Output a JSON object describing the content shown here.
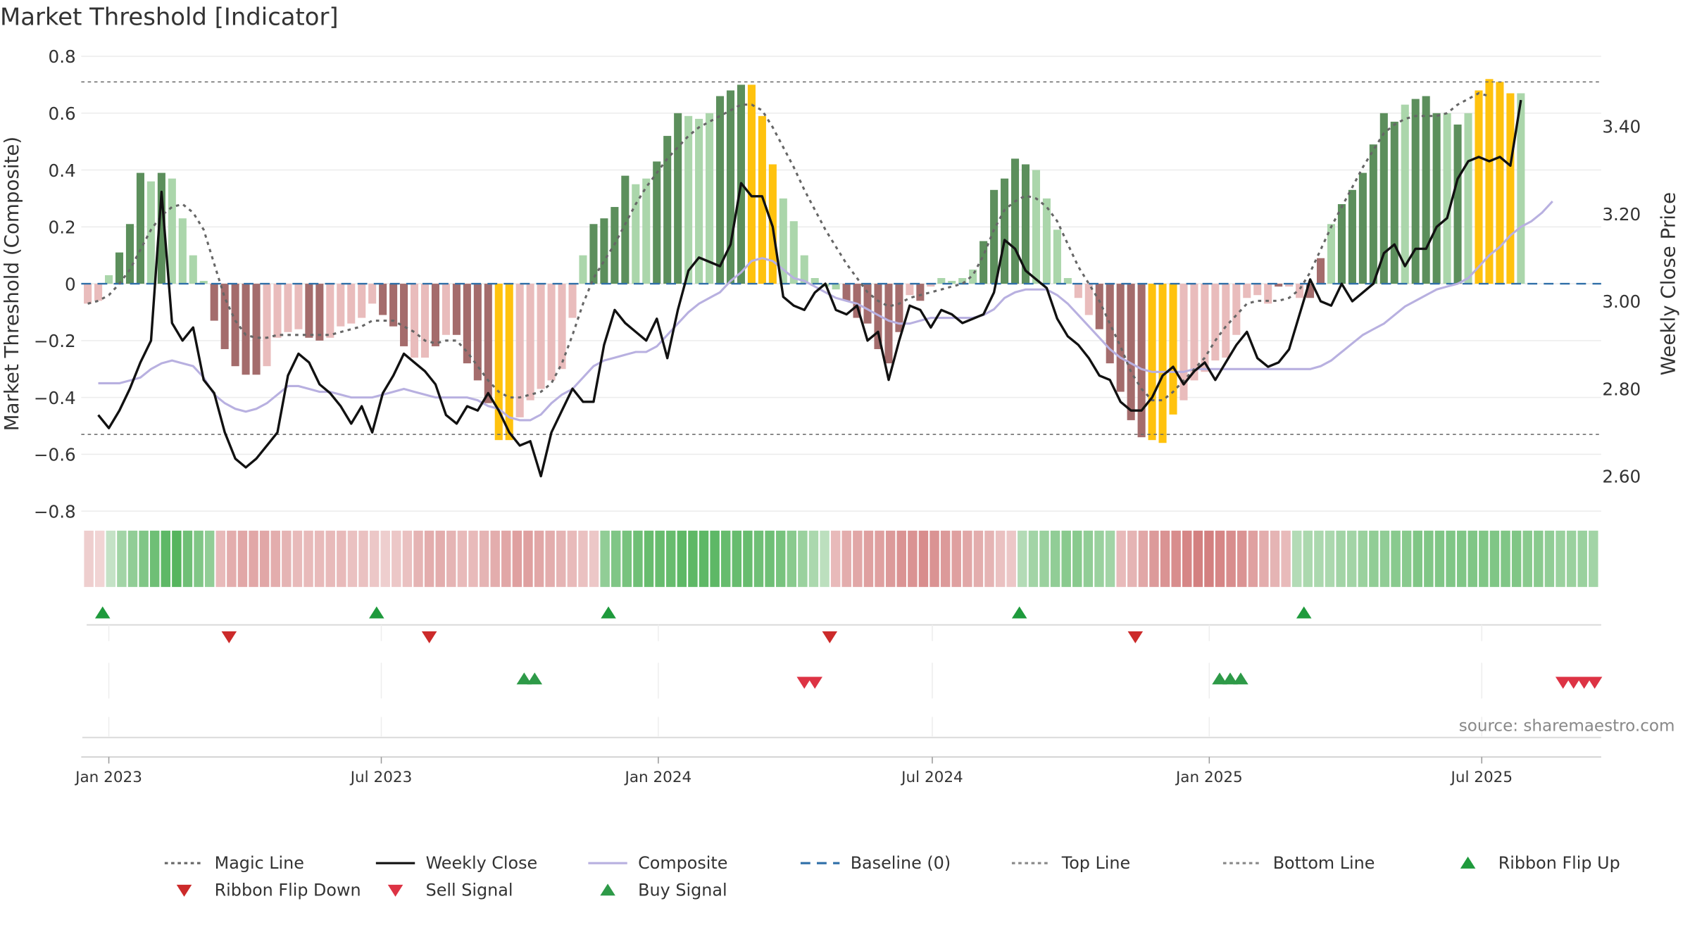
{
  "chart_data": {
    "type": "bar",
    "title": "Market Threshold [Indicator]",
    "ylabel_left": "Market Threshold (Composite)",
    "ylabel_right": "Weekly Close Price",
    "source_text": "source: sharemaestro.com",
    "ylim_left": [
      -0.8,
      0.8
    ],
    "yticks_left": [
      0.8,
      0.6,
      0.4,
      0.2,
      0,
      -0.2,
      -0.4,
      -0.6,
      -0.8
    ],
    "ytick_labels_left": [
      "0.8",
      "0.6",
      "0.4",
      "0.2",
      "0",
      "−0.2",
      "−0.4",
      "−0.6",
      "−0.8"
    ],
    "ylim_right": [
      2.52,
      3.56
    ],
    "yticks_right": [
      3.4,
      3.2,
      3.0,
      2.8,
      2.6
    ],
    "ytick_labels_right": [
      "3.40",
      "3.20",
      "3.00",
      "2.80",
      "2.60"
    ],
    "xaxis": {
      "start_date": "2022-12-18",
      "end_date": "2025-09-14"
    },
    "xtick_dates": [
      "2023-01-01",
      "2023-07-01",
      "2024-01-01",
      "2024-07-01",
      "2025-01-01",
      "2025-07-01"
    ],
    "xtick_labels": [
      "Jan 2023",
      "Jul 2023",
      "Jan 2024",
      "Jul 2024",
      "Jan 2025",
      "Jul 2025"
    ],
    "top_line": 0.71,
    "bottom_line": -0.53,
    "composite_bars": [
      -0.07,
      -0.06,
      0.03,
      0.11,
      0.21,
      0.39,
      0.36,
      0.39,
      0.37,
      0.23,
      0.1,
      0.01,
      -0.13,
      -0.23,
      -0.29,
      -0.32,
      -0.32,
      -0.29,
      -0.19,
      -0.17,
      -0.16,
      -0.19,
      -0.2,
      -0.19,
      -0.15,
      -0.14,
      -0.12,
      -0.07,
      -0.11,
      -0.15,
      -0.22,
      -0.26,
      -0.26,
      -0.22,
      -0.18,
      -0.18,
      -0.28,
      -0.34,
      -0.42,
      -0.55,
      -0.55,
      -0.47,
      -0.41,
      -0.37,
      -0.34,
      -0.3,
      -0.12,
      0.1,
      0.21,
      0.23,
      0.27,
      0.38,
      0.35,
      0.37,
      0.43,
      0.52,
      0.6,
      0.59,
      0.58,
      0.6,
      0.66,
      0.68,
      0.7,
      0.7,
      0.59,
      0.42,
      0.3,
      0.22,
      0.1,
      0.02,
      -0.01,
      -0.02,
      -0.06,
      -0.12,
      -0.14,
      -0.23,
      -0.28,
      -0.17,
      -0.04,
      -0.06,
      -0.01,
      0.02,
      0.01,
      0.02,
      0.05,
      0.15,
      0.33,
      0.37,
      0.44,
      0.42,
      0.4,
      0.3,
      0.19,
      0.02,
      -0.05,
      -0.11,
      -0.16,
      -0.28,
      -0.38,
      -0.48,
      -0.54,
      -0.55,
      -0.56,
      -0.46,
      -0.41,
      -0.34,
      -0.31,
      -0.27,
      -0.26,
      -0.18,
      -0.05,
      -0.04,
      -0.07,
      -0.01,
      -0.01,
      -0.05,
      -0.05,
      0.09,
      0.21,
      0.28,
      0.33,
      0.39,
      0.49,
      0.6,
      0.57,
      0.63,
      0.65,
      0.66,
      0.6,
      0.6,
      0.56,
      0.6,
      0.68,
      0.72,
      0.71,
      0.67,
      0.67
    ],
    "bar_classes": [
      "lr",
      "lr",
      "lg",
      "dg",
      "dg",
      "dg",
      "lg",
      "dg",
      "lg",
      "lg",
      "lg",
      "lg",
      "dr",
      "dr",
      "dr",
      "dr",
      "dr",
      "lr",
      "lr",
      "lr",
      "lr",
      "dr",
      "dr",
      "lr",
      "lr",
      "lr",
      "lr",
      "lr",
      "dr",
      "dr",
      "dr",
      "lr",
      "lr",
      "dr",
      "lr",
      "dr",
      "dr",
      "dr",
      "dr",
      "y",
      "y",
      "lr",
      "lr",
      "lr",
      "lr",
      "lr",
      "lr",
      "lg",
      "dg",
      "dg",
      "dg",
      "dg",
      "lg",
      "lg",
      "dg",
      "dg",
      "dg",
      "lg",
      "lg",
      "lg",
      "dg",
      "dg",
      "dg",
      "y",
      "y",
      "y",
      "lg",
      "lg",
      "lg",
      "lg",
      "lg",
      "lg",
      "dr",
      "dr",
      "dr",
      "dr",
      "dr",
      "dr",
      "lr",
      "dr",
      "lr",
      "lg",
      "lg",
      "lg",
      "lg",
      "dg",
      "dg",
      "dg",
      "dg",
      "dg",
      "lg",
      "lg",
      "lg",
      "lg",
      "lr",
      "lr",
      "dr",
      "dr",
      "dr",
      "dr",
      "dr",
      "y",
      "y",
      "y",
      "lr",
      "lr",
      "lr",
      "lr",
      "lr",
      "lr",
      "lr",
      "lr",
      "lr",
      "dr",
      "lr",
      "lr",
      "dr",
      "dr",
      "lg",
      "dg",
      "dg",
      "dg",
      "dg",
      "dg",
      "dg",
      "lg",
      "dg",
      "dg",
      "dg",
      "lg",
      "dg",
      "lg",
      "y",
      "y",
      "y",
      "y",
      "lg",
      "y"
    ],
    "weekly_close_x_start": "2022-12-25",
    "weekly_close": [
      2.74,
      2.71,
      2.75,
      2.8,
      2.86,
      2.91,
      3.25,
      2.95,
      2.91,
      2.94,
      2.82,
      2.79,
      2.7,
      2.64,
      2.62,
      2.64,
      2.67,
      2.7,
      2.83,
      2.88,
      2.86,
      2.81,
      2.79,
      2.76,
      2.72,
      2.76,
      2.7,
      2.79,
      2.83,
      2.88,
      2.86,
      2.84,
      2.81,
      2.74,
      2.72,
      2.76,
      2.75,
      2.79,
      2.75,
      2.7,
      2.67,
      2.68,
      2.6,
      2.7,
      2.75,
      2.8,
      2.77,
      2.77,
      2.9,
      2.98,
      2.95,
      2.93,
      2.91,
      2.96,
      2.87,
      2.98,
      3.07,
      3.1,
      3.09,
      3.08,
      3.13,
      3.27,
      3.24,
      3.24,
      3.17,
      3.01,
      2.99,
      2.98,
      3.02,
      3.04,
      2.98,
      2.97,
      2.99,
      2.91,
      2.93,
      2.82,
      2.91,
      2.99,
      2.98,
      2.94,
      2.98,
      2.97,
      2.95,
      2.96,
      2.97,
      3.02,
      3.14,
      3.12,
      3.07,
      3.05,
      3.03,
      2.96,
      2.92,
      2.9,
      2.87,
      2.83,
      2.82,
      2.77,
      2.75,
      2.75,
      2.78,
      2.83,
      2.85,
      2.81,
      2.84,
      2.86,
      2.82,
      2.86,
      2.9,
      2.93,
      2.87,
      2.85,
      2.86,
      2.89,
      2.97,
      3.05,
      3.0,
      2.99,
      3.04,
      3.0,
      3.02,
      3.04,
      3.11,
      3.13,
      3.08,
      3.12,
      3.12,
      3.17,
      3.19,
      3.28,
      3.32,
      3.33,
      3.32,
      3.33,
      3.31,
      3.46
    ],
    "composite_line_x_start": "2022-12-25",
    "composite_line": [
      -0.35,
      -0.35,
      -0.35,
      -0.34,
      -0.33,
      -0.3,
      -0.28,
      -0.27,
      -0.28,
      -0.29,
      -0.33,
      -0.39,
      -0.42,
      -0.44,
      -0.45,
      -0.44,
      -0.42,
      -0.39,
      -0.36,
      -0.36,
      -0.37,
      -0.38,
      -0.38,
      -0.39,
      -0.4,
      -0.4,
      -0.4,
      -0.39,
      -0.38,
      -0.37,
      -0.38,
      -0.39,
      -0.4,
      -0.4,
      -0.4,
      -0.4,
      -0.41,
      -0.43,
      -0.44,
      -0.47,
      -0.48,
      -0.48,
      -0.46,
      -0.42,
      -0.39,
      -0.37,
      -0.33,
      -0.29,
      -0.27,
      -0.26,
      -0.25,
      -0.24,
      -0.24,
      -0.22,
      -0.18,
      -0.14,
      -0.1,
      -0.07,
      -0.05,
      -0.03,
      0.01,
      0.04,
      0.08,
      0.09,
      0.08,
      0.05,
      0.02,
      0.01,
      -0.01,
      -0.03,
      -0.05,
      -0.06,
      -0.07,
      -0.09,
      -0.11,
      -0.13,
      -0.14,
      -0.14,
      -0.13,
      -0.12,
      -0.12,
      -0.12,
      -0.12,
      -0.12,
      -0.11,
      -0.09,
      -0.05,
      -0.03,
      -0.02,
      -0.02,
      -0.02,
      -0.04,
      -0.07,
      -0.11,
      -0.15,
      -0.19,
      -0.23,
      -0.26,
      -0.28,
      -0.3,
      -0.31,
      -0.31,
      -0.31,
      -0.31,
      -0.3,
      -0.3,
      -0.3,
      -0.3,
      -0.3,
      -0.3,
      -0.3,
      -0.3,
      -0.3,
      -0.3,
      -0.3,
      -0.3,
      -0.29,
      -0.27,
      -0.24,
      -0.21,
      -0.18,
      -0.16,
      -0.14,
      -0.11,
      -0.08,
      -0.06,
      -0.04,
      -0.02,
      -0.01,
      0.0,
      0.02,
      0.06,
      0.1,
      0.13,
      0.17,
      0.2,
      0.22,
      0.25,
      0.29
    ],
    "magic_line_x_start": "2022-12-18",
    "magic_line": [
      -0.07,
      -0.06,
      -0.04,
      0.0,
      0.05,
      0.12,
      0.19,
      0.24,
      0.27,
      0.28,
      0.25,
      0.19,
      0.07,
      -0.05,
      -0.13,
      -0.18,
      -0.19,
      -0.19,
      -0.18,
      -0.18,
      -0.18,
      -0.18,
      -0.18,
      -0.18,
      -0.17,
      -0.16,
      -0.15,
      -0.13,
      -0.13,
      -0.13,
      -0.15,
      -0.17,
      -0.2,
      -0.21,
      -0.2,
      -0.2,
      -0.24,
      -0.29,
      -0.34,
      -0.38,
      -0.4,
      -0.4,
      -0.39,
      -0.38,
      -0.35,
      -0.28,
      -0.18,
      -0.07,
      0.02,
      0.08,
      0.14,
      0.21,
      0.28,
      0.34,
      0.39,
      0.44,
      0.48,
      0.52,
      0.55,
      0.57,
      0.59,
      0.61,
      0.63,
      0.63,
      0.61,
      0.55,
      0.48,
      0.41,
      0.33,
      0.26,
      0.19,
      0.13,
      0.07,
      0.02,
      -0.03,
      -0.06,
      -0.08,
      -0.07,
      -0.05,
      -0.04,
      -0.03,
      -0.02,
      -0.01,
      0.0,
      0.03,
      0.1,
      0.19,
      0.26,
      0.29,
      0.31,
      0.3,
      0.27,
      0.22,
      0.14,
      0.06,
      0.0,
      -0.06,
      -0.14,
      -0.22,
      -0.31,
      -0.37,
      -0.41,
      -0.41,
      -0.38,
      -0.34,
      -0.3,
      -0.26,
      -0.2,
      -0.15,
      -0.11,
      -0.07,
      -0.06,
      -0.06,
      -0.06,
      -0.05,
      -0.02,
      0.04,
      0.12,
      0.2,
      0.27,
      0.34,
      0.41,
      0.47,
      0.53,
      0.56,
      0.58,
      0.59,
      0.59,
      0.59,
      0.6,
      0.63,
      0.65,
      0.67,
      0.66
    ],
    "ribbon_start": "2022-12-18",
    "ribbon_values": [
      -0.15,
      -0.1,
      0.2,
      0.4,
      0.5,
      0.6,
      0.7,
      0.8,
      0.85,
      0.7,
      0.6,
      0.5,
      -0.3,
      -0.4,
      -0.45,
      -0.45,
      -0.45,
      -0.4,
      -0.35,
      -0.3,
      -0.3,
      -0.3,
      -0.3,
      -0.3,
      -0.25,
      -0.25,
      -0.2,
      -0.15,
      -0.2,
      -0.25,
      -0.35,
      -0.4,
      -0.4,
      -0.35,
      -0.3,
      -0.3,
      -0.35,
      -0.4,
      -0.45,
      -0.5,
      -0.5,
      -0.45,
      -0.4,
      -0.35,
      -0.3,
      -0.25,
      -0.2,
      0.5,
      0.6,
      0.65,
      0.7,
      0.75,
      0.75,
      0.75,
      0.8,
      0.8,
      0.8,
      0.8,
      0.75,
      0.75,
      0.75,
      0.7,
      0.7,
      0.65,
      0.55,
      0.45,
      0.35,
      0.25,
      -0.3,
      -0.4,
      -0.45,
      -0.5,
      -0.5,
      -0.55,
      -0.6,
      -0.6,
      -0.65,
      -0.6,
      -0.55,
      -0.5,
      -0.45,
      -0.4,
      -0.35,
      -0.25,
      -0.2,
      0.3,
      0.4,
      0.45,
      0.5,
      0.55,
      0.55,
      0.5,
      0.45,
      0.4,
      -0.3,
      -0.35,
      -0.45,
      -0.55,
      -0.6,
      -0.65,
      -0.7,
      -0.75,
      -0.75,
      -0.7,
      -0.65,
      -0.6,
      -0.5,
      -0.4,
      -0.35,
      -0.3,
      0.3,
      0.35,
      0.35,
      0.35,
      0.4,
      0.4,
      0.45,
      0.5,
      0.5,
      0.55,
      0.55,
      0.6,
      0.6,
      0.6,
      0.6,
      0.6,
      0.6,
      0.6,
      0.6,
      0.6,
      0.6,
      0.55,
      0.55,
      0.5,
      0.45,
      0.45,
      0.45,
      0.4
    ],
    "ribbon_flip_up": [
      "2022-12-25",
      "2023-06-25",
      "2023-11-26",
      "2024-08-25",
      "2025-03-02"
    ],
    "ribbon_flip_down": [
      "2023-03-19",
      "2023-07-30",
      "2024-04-21",
      "2024-11-10"
    ],
    "buy_signals": [
      "2023-10-01",
      "2023-10-08",
      "2025-01-05",
      "2025-01-12",
      "2025-01-19"
    ],
    "sell_signals": [
      "2024-04-07",
      "2024-04-14",
      "2025-08-24",
      "2025-08-31",
      "2025-09-07",
      "2025-09-14"
    ],
    "colors": {
      "bar_dark_green": "#5c8f5c",
      "bar_light_green": "#abd6ab",
      "bar_dark_red": "#a46c6c",
      "bar_light_red": "#e9bcbc",
      "bar_yellow": "#ffc20e",
      "weekly_close": "#111111",
      "composite": "#b8b0e0",
      "magic": "#666666",
      "baseline": "#2f6fa8",
      "threshold": "#666666",
      "flip_up": "#1e9a3c",
      "flip_down": "#cc2a2a",
      "sell": "#dd3344",
      "buy": "#2e9a48"
    }
  },
  "legend": [
    {
      "label": "Magic Line",
      "symbol": "dotted-line",
      "color": "#666666"
    },
    {
      "label": "Weekly Close",
      "symbol": "solid-line",
      "color": "#111111"
    },
    {
      "label": "Composite",
      "symbol": "solid-line",
      "color": "#b8b0e0"
    },
    {
      "label": "Baseline (0)",
      "symbol": "dashed-line",
      "color": "#2f6fa8"
    },
    {
      "label": "Top Line",
      "symbol": "dotted-line",
      "color": "#888888"
    },
    {
      "label": "Bottom Line",
      "symbol": "dotted-line",
      "color": "#888888"
    },
    {
      "label": "Ribbon Flip Up",
      "symbol": "triangle-up",
      "color": "#1e9a3c"
    },
    {
      "label": "Ribbon Flip Down",
      "symbol": "triangle-down",
      "color": "#cc2a2a"
    },
    {
      "label": "Sell Signal",
      "symbol": "triangle-down",
      "color": "#dd3344"
    },
    {
      "label": "Buy Signal",
      "symbol": "triangle-up",
      "color": "#2e9a48"
    }
  ]
}
